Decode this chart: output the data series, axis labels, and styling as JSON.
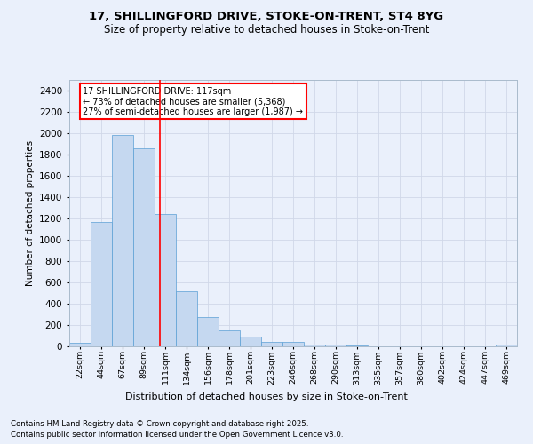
{
  "title1": "17, SHILLINGFORD DRIVE, STOKE-ON-TRENT, ST4 8YG",
  "title2": "Size of property relative to detached houses in Stoke-on-Trent",
  "xlabel": "Distribution of detached houses by size in Stoke-on-Trent",
  "ylabel": "Number of detached properties",
  "bin_labels": [
    "22sqm",
    "44sqm",
    "67sqm",
    "89sqm",
    "111sqm",
    "134sqm",
    "156sqm",
    "178sqm",
    "201sqm",
    "223sqm",
    "246sqm",
    "268sqm",
    "290sqm",
    "313sqm",
    "335sqm",
    "357sqm",
    "380sqm",
    "402sqm",
    "424sqm",
    "447sqm",
    "469sqm"
  ],
  "bar_values": [
    30,
    1170,
    1980,
    1860,
    1245,
    520,
    275,
    152,
    95,
    45,
    45,
    20,
    15,
    8,
    4,
    3,
    2,
    2,
    1,
    1,
    17
  ],
  "bar_color": "#c5d8f0",
  "bar_edge_color": "#5a9fd4",
  "grid_color": "#d0d8e8",
  "bg_color": "#eaf0fb",
  "annotation_text": "17 SHILLINGFORD DRIVE: 117sqm\n← 73% of detached houses are smaller (5,368)\n27% of semi-detached houses are larger (1,987) →",
  "footnote1": "Contains HM Land Registry data © Crown copyright and database right 2025.",
  "footnote2": "Contains public sector information licensed under the Open Government Licence v3.0.",
  "ylim": [
    0,
    2500
  ],
  "yticks": [
    0,
    200,
    400,
    600,
    800,
    1000,
    1200,
    1400,
    1600,
    1800,
    2000,
    2200,
    2400
  ]
}
